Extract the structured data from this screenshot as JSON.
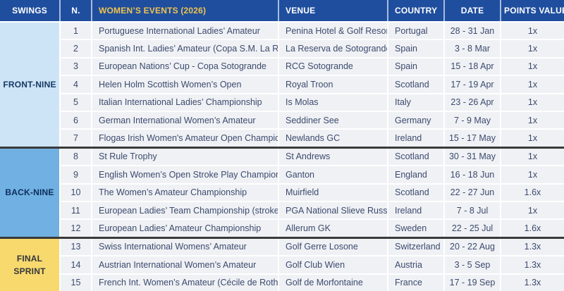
{
  "colors": {
    "header_bg": "#1f4e9e",
    "header_text": "#ffffff",
    "events_header_text": "#f0c34e",
    "row_bg": "#eff1f4",
    "row_text": "#3c4a6e",
    "group_divider": "#3a3a3a"
  },
  "table": {
    "columns": {
      "swings": "SWINGS",
      "n": "N.",
      "events": "WOMEN’S EVENTS (2026)",
      "venue": "VENUE",
      "country": "COUNTRY",
      "date": "DATE",
      "points": "POINTS VALUE"
    },
    "groups": [
      {
        "label": "FRONT-NINE",
        "bg": "#cde4f7",
        "text_color": "#173963",
        "events": [
          {
            "n": "1",
            "event": "Portuguese International Ladies’ Amateur",
            "venue": "Penina Hotel & Golf Resort",
            "country": "Portugal",
            "date": "28 - 31 Jan",
            "points": "1x"
          },
          {
            "n": "2",
            "event": "Spanish Int. Ladies’ Amateur (Copa S.M. La Reina)",
            "venue": "La Reserva de Sotogrande",
            "country": "Spain",
            "date": "3 - 8 Mar",
            "points": "1x"
          },
          {
            "n": "3",
            "event": "European Nations’ Cup - Copa Sotogrande",
            "venue": "RCG Sotogrande",
            "country": "Spain",
            "date": "15 - 18 Apr",
            "points": "1x"
          },
          {
            "n": "4",
            "event": "Helen Holm Scottish Women’s Open",
            "venue": "Royal Troon",
            "country": "Scotland",
            "date": "17 - 19 Apr",
            "points": "1x"
          },
          {
            "n": "5",
            "event": "Italian International Ladies’ Championship",
            "venue": "Is Molas",
            "country": "Italy",
            "date": "23 - 26 Apr",
            "points": "1x"
          },
          {
            "n": "6",
            "event": "German International Women’s Amateur",
            "venue": "Seddiner See",
            "country": "Germany",
            "date": "7 - 9 May",
            "points": "1x"
          },
          {
            "n": "7",
            "event": "Flogas Irish Women's Amateur Open Championship",
            "venue": "Newlands GC",
            "country": "Ireland",
            "date": "15 - 17 May",
            "points": "1x"
          }
        ]
      },
      {
        "label": "BACK-NINE",
        "bg": "#70b0e2",
        "text_color": "#0d2d5c",
        "events": [
          {
            "n": "8",
            "event": "St Rule Trophy",
            "venue": "St Andrews",
            "country": "Scotland",
            "date": "30 - 31 May",
            "points": "1x"
          },
          {
            "n": "9",
            "event": "English Women’s Open Stroke Play Championship",
            "venue": "Ganton",
            "country": "England",
            "date": "16 - 18 Jun",
            "points": "1x"
          },
          {
            "n": "10",
            "event": "The Women’s Amateur Championship",
            "venue": "Muirfield",
            "country": "Scotland",
            "date": "22 - 27 Jun",
            "points": "1.6x"
          },
          {
            "n": "11",
            "event": "European Ladies’ Team Championship (stroke play)",
            "venue": "PGA National Slieve Russell",
            "country": "Ireland",
            "date": "7 - 8 Jul",
            "points": "1x"
          },
          {
            "n": "12",
            "event": "European Ladies’ Amateur Championship",
            "venue": "Allerum GK",
            "country": "Sweden",
            "date": "22 - 25 Jul",
            "points": "1.6x"
          }
        ]
      },
      {
        "label": "FINAL SPRINT",
        "bg": "#f8d96e",
        "text_color": "#33363c",
        "events": [
          {
            "n": "13",
            "event": "Swiss International Womens’ Amateur",
            "venue": "Golf Gerre Losone",
            "country": "Switzerland",
            "date": "20 - 22 Aug",
            "points": "1.3x"
          },
          {
            "n": "14",
            "event": "Austrian International Women’s Amateur",
            "venue": "Golf Club Wien",
            "country": "Austria",
            "date": "3 - 5 Sep",
            "points": "1.3x"
          },
          {
            "n": "15",
            "event": "French Int. Women’s Amateur (Cécile de Rothschild)",
            "venue": "Golf de Morfontaine",
            "country": "France",
            "date": "17 - 19 Sep",
            "points": "1.3x"
          }
        ]
      }
    ]
  }
}
